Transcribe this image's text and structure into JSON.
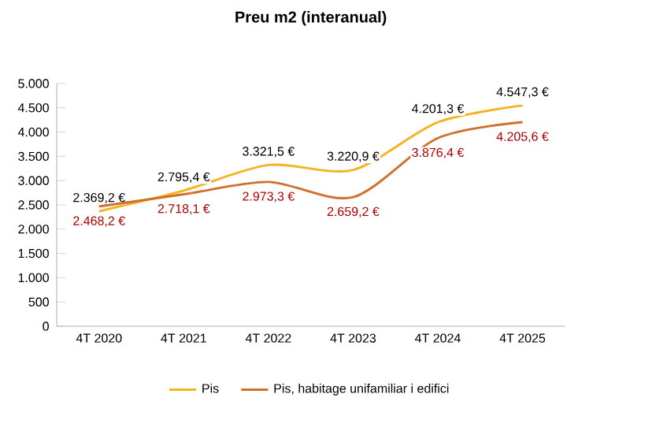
{
  "chart_data": {
    "type": "line",
    "title": "Preu m2 (interanual)",
    "categories": [
      "4T 2020",
      "4T 2021",
      "4T 2022",
      "4T 2023",
      "4T 2024",
      "4T 2025"
    ],
    "ylim": [
      0,
      5000
    ],
    "yticks": [
      0,
      {
        "value": 500,
        "label": "500"
      },
      {
        "value": 1000,
        "label": "1.000"
      },
      {
        "value": 1500,
        "label": "1.500"
      },
      {
        "value": 2000,
        "label": "2.000"
      },
      {
        "value": 2500,
        "label": "2.500"
      },
      {
        "value": 3000,
        "label": "3.000"
      },
      {
        "value": 3500,
        "label": "3.500"
      },
      {
        "value": 4000,
        "label": "4.000"
      },
      {
        "value": 4500,
        "label": "4.500"
      },
      {
        "value": 5000,
        "label": "5.000"
      }
    ],
    "series": [
      {
        "name": "Pis",
        "color": "#f5b324",
        "values": [
          2369.2,
          2795.4,
          3321.5,
          3220.9,
          4201.3,
          4547.3
        ],
        "value_labels": [
          "2.369,2 €",
          "2.795,4 €",
          "3.321,5 €",
          "3.220,9 €",
          "4.201,3 €",
          "4.547,3 €"
        ]
      },
      {
        "name": "Pis, habitage unifamiliar i edifici",
        "color": "#d0702a",
        "values": [
          2468.2,
          2718.1,
          2973.3,
          2659.2,
          3876.4,
          4205.6
        ],
        "value_labels": [
          "2.468,2 €",
          "2.718,1 €",
          "2.973,3 €",
          "2.659,2 €",
          "3.876,4 €",
          "4.205,6 €"
        ]
      }
    ],
    "legend": "bottom",
    "marker": "none",
    "line_style": "solid",
    "grid": false
  }
}
